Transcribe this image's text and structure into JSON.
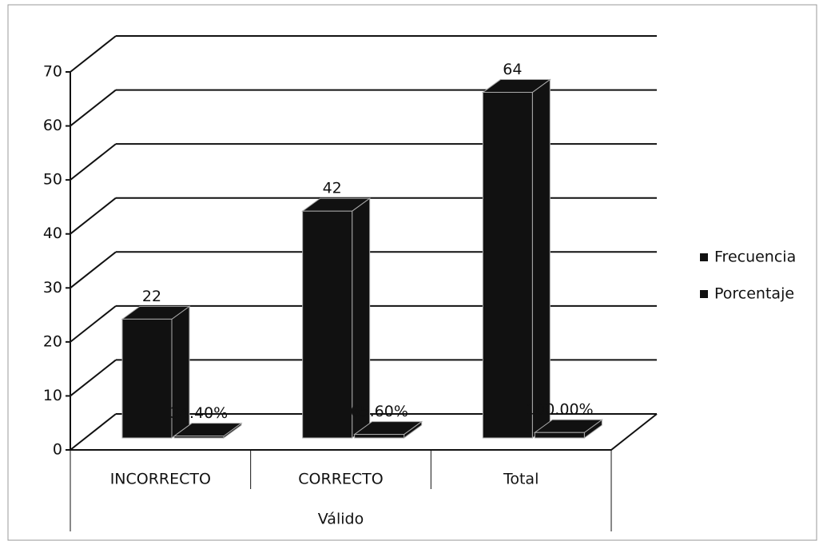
{
  "chart_data": {
    "type": "bar3d",
    "categories": [
      "INCORRECTO",
      "CORRECTO",
      "Total"
    ],
    "group_label": "Válido",
    "series": [
      {
        "name": "Frecuencia",
        "color": "#111111",
        "values": [
          22,
          42,
          64
        ]
      },
      {
        "name": "Porcentaje",
        "color": "#111111",
        "values": [
          0.344,
          0.656,
          1
        ],
        "value_labels": [
          "34.40%",
          "65.60%",
          "100.00%"
        ]
      }
    ],
    "ylim": [
      0,
      70
    ],
    "yticks": [
      0,
      10,
      20,
      30,
      40,
      50,
      60,
      70
    ],
    "grid": true,
    "legend": "right"
  }
}
